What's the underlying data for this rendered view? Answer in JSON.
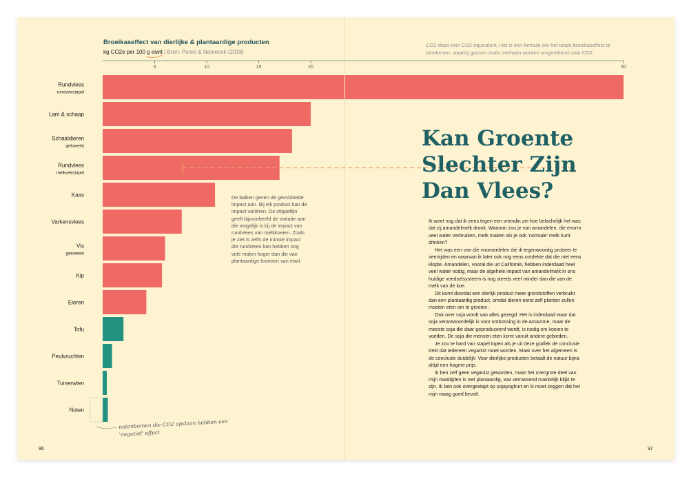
{
  "chart_data": {
    "type": "bar",
    "orientation": "horizontal",
    "title": "Broeikaseffect van dierlijke & plantaardige producten",
    "unit_label": "kg CO2e per 100 g eiwit",
    "source": "| Bron: Poore & Nemecek (2018)",
    "x_ticks": [
      5,
      10,
      15,
      20,
      50
    ],
    "xlim": [
      0,
      50
    ],
    "x_axis_break_after": 20,
    "categories": [
      {
        "label": "Rundvlees",
        "sublabel": "rundveestapel",
        "value": 50,
        "group": "dierlijk"
      },
      {
        "label": "Lam & schaap",
        "sublabel": "",
        "value": 20,
        "group": "dierlijk"
      },
      {
        "label": "Schaaldieren",
        "sublabel": "gekweekt",
        "value": 18.2,
        "group": "dierlijk"
      },
      {
        "label": "Rundvlees",
        "sublabel": "melkveestapel",
        "value": 17,
        "group": "dierlijk",
        "range": [
          7.7,
          28.5
        ]
      },
      {
        "label": "Kaas",
        "sublabel": "",
        "value": 10.8,
        "group": "dierlijk"
      },
      {
        "label": "Varkensvlees",
        "sublabel": "",
        "value": 7.6,
        "group": "dierlijk"
      },
      {
        "label": "Vis",
        "sublabel": "gekweekt",
        "value": 6,
        "group": "dierlijk"
      },
      {
        "label": "Kip",
        "sublabel": "",
        "value": 5.7,
        "group": "dierlijk"
      },
      {
        "label": "Eieren",
        "sublabel": "",
        "value": 4.2,
        "group": "dierlijk"
      },
      {
        "label": "Tofu",
        "sublabel": "",
        "value": 2,
        "group": "plantaardig"
      },
      {
        "label": "Peulvruchten",
        "sublabel": "",
        "value": 0.9,
        "group": "plantaardig"
      },
      {
        "label": "Tuinerwten",
        "sublabel": "",
        "value": 0.4,
        "group": "plantaardig"
      },
      {
        "label": "Noten",
        "sublabel": "",
        "value": 0.5,
        "group": "plantaardig",
        "negative_part": -1.2
      }
    ],
    "colors": {
      "dierlijk": "#ef6a64",
      "plantaardig": "#23917f",
      "range": "#f0a16a",
      "axis": "#1f4f56"
    }
  },
  "note": "CO2 staat voor CO2 equivalent. Het is een formule om het totale broeikaseffect te berekenen, waarbij gassen zoals methaan worden omgerekend naar CO2.",
  "annotation": {
    "before": "De balken geven de ",
    "emph": "gemiddelde",
    "after": " impact aan. Bij elk product kan de impact variëren. De stippellijn geeft bijvoorbeeld de variatie aan die mogelijk is bij de impact van rundvlees van melkkoeien. Zoals je ziet is zelfs de minste impact die rundvlees kan hebben nog vele malen hoger dan die van plantaardige bronnen van eiwit."
  },
  "handwritten_note": "notenbomen die CO2 opslaan hebben een 'negatief' effect",
  "heading": "Kan Groente Slechter Zijn Dan Vlees?",
  "body_paragraphs": [
    "Ik weet nog dat ik eens tegen een vriendin zei hoe belache­lijk het was dat zij amandelmelk dronk. Waarom zou je van amandelen, die enorm veel water verbruiken, melk maken als je ook 'normale' melk kunt drinken?",
    "Het was een van die vooroordelen die ik tegenwoordig probeer te vermijden en waarvan ik later ook nog eens ontdekte dat die niet eens klopte. Amandelen, vooral die uit Californië, hebben inderdaad heel veel water nodig, maar de algehele impact van amandelmelk in ons huidige voedsel­systeem is nog steeds veel minder dan die van de melk van de koe.",
    "Dit komt doordat een dierlijk product meer grondstoffen verbruikt dan een plantaardig product, omdat dieren eerst zelf planten zullen moeten eten om te groeien.",
    "Ook over soja wordt van alles gezegd. Het is inderdaad waar dat soja verantwoordelijk is voor ontbossing in de Amazone, maar de meeste soja die daar geproduceerd wordt, is nodig om koeien te voeden. De soja die mensen eten komt vanuit andere gebieden.",
    "Je zou te hard van stapel lopen als je uit deze grafiek de conclusie trekt dat iedereen veganist moet worden. Maar over het algemeen is de conclusie duidelijk: Voor dierlijke producten betaalt de natuur bijna altijd een hogere prijs.",
    "Ik ben zelf geen veganist geworden, maar het overgrote deel van mijn maaltijden is wel plantaardig, wat verrassend makkelijk blijkt te zijn. Ik ben ook overgestapt op sojayoghurt en ik moet zeggen dat het mijn maag goed bevalt."
  ],
  "page_left": "96",
  "page_right": "97"
}
